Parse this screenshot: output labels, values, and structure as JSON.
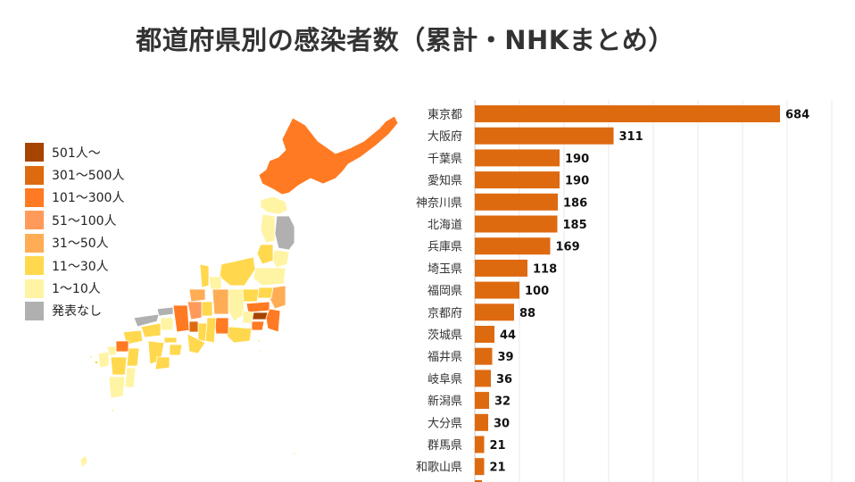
{
  "title": "都道府県別の感染者数（累計・NHKまとめ）",
  "legend": {
    "items": [
      {
        "label": "501人～",
        "color": "#a64400"
      },
      {
        "label": "301～500人",
        "color": "#de6a10"
      },
      {
        "label": "101～300人",
        "color": "#ff7a22"
      },
      {
        "label": "51～100人",
        "color": "#ff9a5a"
      },
      {
        "label": "31～50人",
        "color": "#ffad55"
      },
      {
        "label": "11～30人",
        "color": "#ffd84d"
      },
      {
        "label": "1～10人",
        "color": "#fff4a3"
      },
      {
        "label": "発表なし",
        "color": "#b0b0b0"
      }
    ]
  },
  "chart_data": {
    "type": "bar",
    "orientation": "horizontal",
    "title": "都道府県別の感染者数（累計・NHKまとめ）",
    "categories": [
      "東京都",
      "大阪府",
      "千葉県",
      "愛知県",
      "神奈川県",
      "北海道",
      "兵庫県",
      "埼玉県",
      "福岡県",
      "京都府",
      "茨城県",
      "福井県",
      "岐阜県",
      "新潟県",
      "大分県",
      "群馬県",
      "和歌山県"
    ],
    "values": [
      684,
      311,
      190,
      190,
      186,
      185,
      169,
      118,
      100,
      88,
      44,
      39,
      36,
      32,
      30,
      21,
      21
    ],
    "xlim": [
      0,
      800
    ],
    "grid": true,
    "bar_color": "#de6a10"
  }
}
